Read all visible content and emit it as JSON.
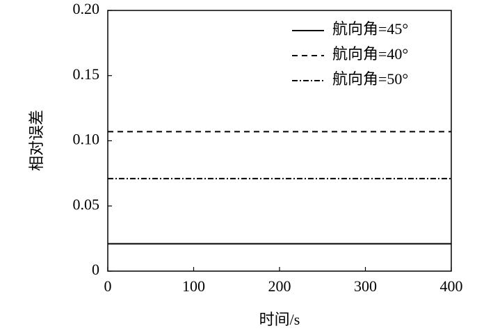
{
  "chart_data": {
    "type": "line",
    "x_label": "时间/s",
    "y_label": "相对误差",
    "x": [
      0,
      400
    ],
    "series": [
      {
        "name": "航向角=45°",
        "color": "#000000",
        "dash": "solid",
        "values": [
          0.021,
          0.021
        ]
      },
      {
        "name": "航向角=40°",
        "color": "#000000",
        "dash": "dashed",
        "values": [
          0.107,
          0.107
        ]
      },
      {
        "name": "航向角=50°",
        "color": "#000000",
        "dash": "dashdot",
        "values": [
          0.071,
          0.071
        ]
      }
    ],
    "xlim": [
      0,
      400
    ],
    "xticks": [
      0,
      100,
      200,
      300,
      400
    ],
    "ylim": [
      0,
      0.2
    ],
    "yticks": [
      0,
      0.05,
      {
        "value": 0.1,
        "label": "0.10"
      },
      0.15,
      {
        "value": 0.2,
        "label": "0.20"
      }
    ],
    "legend": "upper right"
  }
}
